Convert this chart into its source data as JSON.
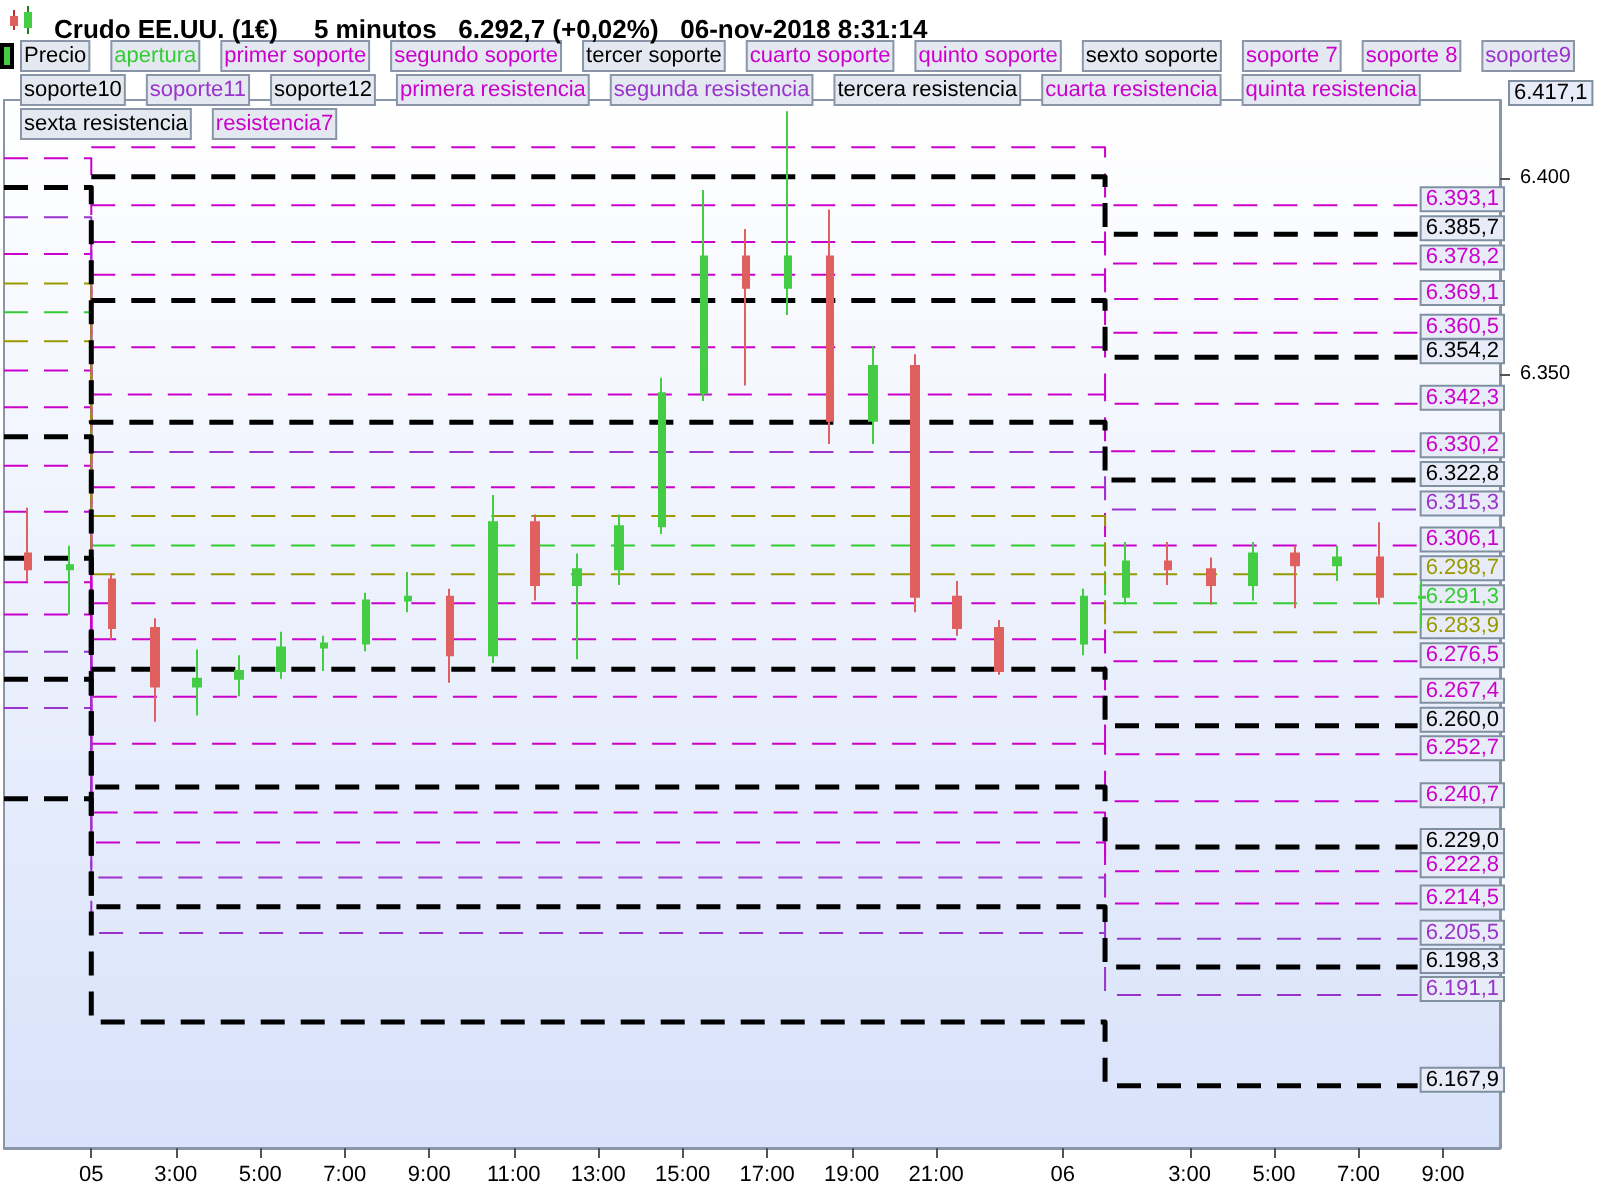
{
  "chart_data": {
    "type": "candlestick",
    "title": "Crudo EE.UU. (1€)",
    "subtitle": "5 minutos   6.292,7 (+0,02%)   06-nov-2018 8:31:14",
    "legend": "top",
    "line_style": "dashed",
    "marker": "none",
    "x": [
      "2018-11-04T22:56",
      "2018-11-05T01:00",
      "2018-11-06T01:00",
      "2018-11-06T08:24"
    ],
    "xlim": [
      "2018-11-04T22:56",
      "2018-11-06T10:21"
    ],
    "xticks": [
      {
        "value": "2018-11-05T01:00",
        "label": "05"
      },
      {
        "value": "2018-11-05T03:00",
        "label": "3:00"
      },
      {
        "value": "2018-11-05T05:00",
        "label": "5:00"
      },
      {
        "value": "2018-11-05T07:00",
        "label": "7:00"
      },
      {
        "value": "2018-11-05T09:00",
        "label": "9:00"
      },
      {
        "value": "2018-11-05T11:00",
        "label": "11:00"
      },
      {
        "value": "2018-11-05T13:00",
        "label": "13:00"
      },
      {
        "value": "2018-11-05T15:00",
        "label": "15:00"
      },
      {
        "value": "2018-11-05T17:00",
        "label": "17:00"
      },
      {
        "value": "2018-11-05T19:00",
        "label": "19:00"
      },
      {
        "value": "2018-11-05T21:00",
        "label": "21:00"
      },
      {
        "value": "2018-11-06T00:00",
        "label": "06"
      },
      {
        "value": "2018-11-06T03:00",
        "label": "3:00"
      },
      {
        "value": "2018-11-06T05:00",
        "label": "5:00"
      },
      {
        "value": "2018-11-06T07:00",
        "label": "7:00"
      },
      {
        "value": "2018-11-06T09:00",
        "label": "9:00"
      }
    ],
    "ylim": [
      6152,
      6420
    ],
    "yticks": [
      {
        "value": 6350,
        "label": "6.350"
      },
      {
        "value": 6400,
        "label": "6.400"
      }
    ],
    "annotations": [
      "6.417,1"
    ],
    "series": [
      {
        "name": "Precio",
        "color": "#000000",
        "x": [
          "2018-11-04T23:30",
          "2018-11-05T00:30",
          "2018-11-05T01:30",
          "2018-11-05T02:30",
          "2018-11-05T03:30",
          "2018-11-05T04:30",
          "2018-11-05T05:30",
          "2018-11-05T06:30",
          "2018-11-05T07:30",
          "2018-11-05T08:30",
          "2018-11-05T09:30",
          "2018-11-05T10:30",
          "2018-11-05T11:30",
          "2018-11-05T12:30",
          "2018-11-05T13:30",
          "2018-11-05T14:30",
          "2018-11-05T15:30",
          "2018-11-05T16:30",
          "2018-11-05T17:30",
          "2018-11-05T18:30",
          "2018-11-05T19:30",
          "2018-11-05T20:30",
          "2018-11-05T21:30",
          "2018-11-05T22:30",
          "2018-11-06T00:30",
          "2018-11-06T01:30",
          "2018-11-06T02:30",
          "2018-11-06T03:30",
          "2018-11-06T04:30",
          "2018-11-06T05:30",
          "2018-11-06T06:30",
          "2018-11-06T07:30",
          "2018-11-06T08:30"
        ],
        "ohlc": [
          [
            6304,
            6315.7,
            6297,
            6300
          ],
          [
            6300,
            6306,
            6288.4,
            6301
          ],
          [
            6297.4,
            6299,
            6282,
            6285
          ],
          [
            6285,
            6287.5,
            6261,
            6270
          ],
          [
            6270,
            6279.5,
            6262.6,
            6272
          ],
          [
            6272,
            6278,
            6267.5,
            6274
          ],
          [
            6274,
            6284,
            6272,
            6280
          ],
          [
            6280,
            6283,
            6274,
            6281
          ],
          [
            6281,
            6294,
            6279,
            6292
          ],
          [
            6292,
            6299.3,
            6289,
            6293
          ],
          [
            6293,
            6295,
            6271,
            6278
          ],
          [
            6278,
            6319,
            6276,
            6312
          ],
          [
            6312,
            6314,
            6292,
            6296
          ],
          [
            6296,
            6304,
            6277,
            6300
          ],
          [
            6300,
            6314,
            6296,
            6311
          ],
          [
            6311,
            6349,
            6309,
            6345
          ],
          [
            6345,
            6397,
            6343,
            6380
          ],
          [
            6380,
            6387,
            6347,
            6372
          ],
          [
            6372,
            6417.1,
            6365,
            6380
          ],
          [
            6380,
            6392,
            6332,
            6338
          ],
          [
            6338,
            6357,
            6332,
            6352
          ],
          [
            6352,
            6355,
            6289,
            6293
          ],
          [
            6293,
            6297,
            6283,
            6285
          ],
          [
            6285,
            6287,
            6273,
            6274
          ],
          [
            6281,
            6295,
            6278,
            6293
          ],
          [
            6293,
            6307,
            6291,
            6302
          ],
          [
            6302,
            6307,
            6296,
            6300
          ],
          [
            6300,
            6303,
            6291,
            6296
          ],
          [
            6296,
            6307,
            6292,
            6304
          ],
          [
            6304,
            6306,
            6290,
            6301
          ],
          [
            6301,
            6306,
            6297,
            6303
          ],
          [
            6303,
            6312,
            6291,
            6293
          ],
          [
            6293,
            6297,
            6285,
            6292.7
          ]
        ],
        "colors": [
          "#e06060",
          "#44cc44",
          "#e06060",
          "#e06060",
          "#44cc44",
          "#44cc44",
          "#44cc44",
          "#44cc44",
          "#44cc44",
          "#44cc44",
          "#e06060",
          "#44cc44",
          "#e06060",
          "#44cc44",
          "#44cc44",
          "#44cc44",
          "#44cc44",
          "#e06060",
          "#44cc44",
          "#e06060",
          "#44cc44",
          "#e06060",
          "#e06060",
          "#e06060",
          "#44cc44",
          "#44cc44",
          "#e06060",
          "#e06060",
          "#44cc44",
          "#e06060",
          "#44cc44",
          "#e06060",
          "#44cc44"
        ]
      },
      {
        "name": "apertura",
        "type": "step",
        "color": "#33cc33",
        "values": [
          6365.7,
          6306.1,
          6291.3,
          6291.3
        ],
        "value_labels": [
          null,
          null,
          null,
          "6.291,3"
        ]
      },
      {
        "name": "primer soporte",
        "type": "step",
        "color": "#cc00cc",
        "values": [
          6350.8,
          6291.3,
          6276.5,
          6276.5
        ],
        "value_labels": [
          null,
          null,
          null,
          "6.276,5"
        ]
      },
      {
        "name": "segundo soporte",
        "type": "step",
        "color": "#cc00cc",
        "values": [
          6341.4,
          6282.1,
          6267.4,
          6267.4
        ],
        "value_labels": [
          null,
          null,
          null,
          "6.267,4"
        ]
      },
      {
        "name": "tercer soporte",
        "type": "step",
        "color": "#000000",
        "values": [
          6333.9,
          6274.4,
          6260,
          6260
        ],
        "value_labels": [
          null,
          null,
          null,
          "6.260,0"
        ]
      },
      {
        "name": "cuarto soporte",
        "type": "step",
        "color": "#cc00cc",
        "values": [
          6326.5,
          6267.4,
          6252.7,
          6252.7
        ],
        "value_labels": [
          null,
          null,
          null,
          "6.252,7"
        ]
      },
      {
        "name": "quinto soporte",
        "type": "step",
        "color": "#cc00cc",
        "values": [
          6314.7,
          6255.4,
          6240.7,
          6240.7
        ],
        "value_labels": [
          null,
          null,
          null,
          "6.240,7"
        ]
      },
      {
        "name": "sexto soporte",
        "type": "step",
        "color": "#000000",
        "values": [
          6302.8,
          6244.3,
          6229,
          6229
        ],
        "value_labels": [
          null,
          null,
          null,
          "6.229,0"
        ]
      },
      {
        "name": "soporte 7",
        "type": "step",
        "color": "#cc00cc",
        "values": [
          6296.7,
          6237.8,
          6222.8,
          6222.8
        ],
        "value_labels": [
          null,
          null,
          null,
          "6.222,8"
        ]
      },
      {
        "name": "soporte 8",
        "type": "step",
        "color": "#cc00cc",
        "values": [
          6288.4,
          6230.1,
          6214.5,
          6214.5
        ],
        "value_labels": [
          null,
          null,
          null,
          "6.214,5"
        ]
      },
      {
        "name": "soporte9",
        "type": "step",
        "color": "#9933cc",
        "values": [
          6278.9,
          6221.2,
          6205.5,
          6205.5
        ],
        "value_labels": [
          null,
          null,
          null,
          "6.205,5"
        ]
      },
      {
        "name": "soporte10",
        "type": "step",
        "color": "#000000",
        "values": [
          6271.9,
          6213.7,
          6198.3,
          6198.3
        ],
        "value_labels": [
          null,
          null,
          null,
          "6.198,3"
        ]
      },
      {
        "name": "soporte11",
        "type": "step",
        "color": "#9933cc",
        "values": [
          6264.5,
          6207,
          6191.1,
          6191.1
        ],
        "value_labels": [
          null,
          null,
          null,
          "6.191,1"
        ]
      },
      {
        "name": "soporte12",
        "type": "step",
        "color": "#000000",
        "values": [
          6241.3,
          6184.2,
          6167.9,
          6167.9
        ],
        "value_labels": [
          null,
          null,
          null,
          "6.167,9"
        ]
      },
      {
        "name": "primera resistencia",
        "type": "step",
        "color": "#cc00cc",
        "values": [
          6380.6,
          6321,
          6306.1,
          6306.1
        ],
        "value_labels": [
          null,
          null,
          null,
          "6.306,1"
        ]
      },
      {
        "name": "segunda resistencia",
        "type": "step",
        "color": "#9933cc",
        "values": [
          6390,
          6330,
          6315.3,
          6315.3
        ],
        "value_labels": [
          null,
          null,
          null,
          "6.315,3"
        ]
      },
      {
        "name": "tercera resistencia",
        "type": "step",
        "color": "#000000",
        "values": [
          6397.6,
          6337.6,
          6322.8,
          6322.8
        ],
        "value_labels": [
          null,
          null,
          null,
          "6.322,8"
        ]
      },
      {
        "name": "cuarta resistencia",
        "type": "step",
        "color": "#cc00cc",
        "values": [
          6405.1,
          6344.7,
          6330.2,
          6330.2
        ],
        "value_labels": [
          null,
          null,
          null,
          "6.330,2"
        ]
      },
      {
        "name": "quinta resistencia",
        "type": "step",
        "color": "#cc00cc",
        "values": [
          null,
          6356.8,
          6342.3,
          6342.3
        ],
        "value_labels": [
          null,
          null,
          null,
          "6.342,3"
        ]
      },
      {
        "name": "sexta resistencia",
        "type": "step",
        "color": "#000000",
        "values": [
          null,
          6368.7,
          6354.2,
          6354.2
        ],
        "value_labels": [
          null,
          null,
          null,
          "6.354,2"
        ]
      },
      {
        "name": "resistencia7",
        "type": "step",
        "color": "#cc00cc",
        "values": [
          null,
          6375.3,
          6360.5,
          6360.5
        ],
        "value_labels": [
          null,
          null,
          null,
          "6.360,5"
        ]
      },
      {
        "type": "step",
        "color": "#cc00cc",
        "values": [
          null,
          6383.7,
          6369.1,
          6369.1
        ],
        "value_labels": [
          null,
          null,
          null,
          "6.369,1"
        ]
      },
      {
        "type": "step",
        "color": "#cc00cc",
        "values": [
          null,
          6393.1,
          6378.2,
          6378.2
        ],
        "value_labels": [
          null,
          null,
          null,
          "6.378,2"
        ]
      },
      {
        "type": "step",
        "color": "#000000",
        "values": [
          null,
          6400.4,
          6385.7,
          6385.7
        ],
        "value_labels": [
          null,
          null,
          null,
          "6.385,7"
        ]
      },
      {
        "type": "step",
        "color": "#cc00cc",
        "values": [
          null,
          6407.9,
          6393.1,
          6393.1
        ],
        "value_labels": [
          null,
          null,
          null,
          "6.393,1"
        ]
      },
      {
        "type": "step",
        "color": "#999900",
        "values": [
          6373.1,
          6313.6,
          6298.7,
          6298.7
        ],
        "value_labels": [
          null,
          null,
          null,
          "6.298,7"
        ]
      },
      {
        "type": "step",
        "color": "#999900",
        "values": [
          6358.3,
          6298.7,
          6283.9,
          6283.9
        ],
        "value_labels": [
          null,
          null,
          null,
          "6.283,9"
        ]
      }
    ]
  }
}
